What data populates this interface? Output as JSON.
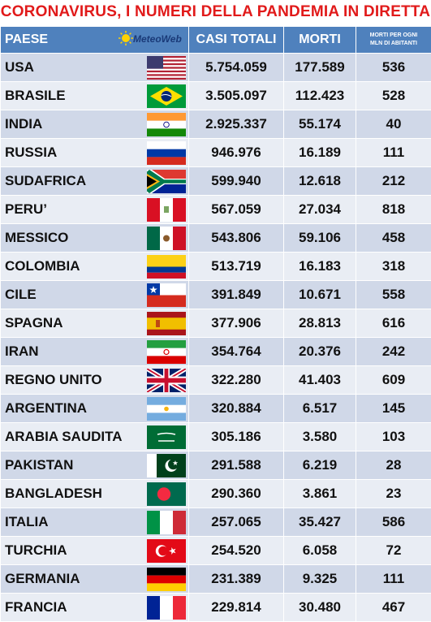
{
  "title": "CORONAVIRUS, I NUMERI DELLA PANDEMIA IN DIRETTA",
  "header": {
    "paese": "PAESE",
    "logo": "MeteoWeb",
    "casi": "CASI TOTALI",
    "morti": "MORTI",
    "mln_line1": "MORTI PER OGNI",
    "mln_line2": "MLN DI ABITANTI"
  },
  "rows": [
    {
      "paese": "USA",
      "casi": "5.754.059",
      "morti": "177.589",
      "mln": "536",
      "flag": "usa-flag"
    },
    {
      "paese": "BRASILE",
      "casi": "3.505.097",
      "morti": "112.423",
      "mln": "528",
      "flag": "brazil-flag"
    },
    {
      "paese": "INDIA",
      "casi": "2.925.337",
      "morti": "55.174",
      "mln": "40",
      "flag": "india-flag"
    },
    {
      "paese": "RUSSIA",
      "casi": "946.976",
      "morti": "16.189",
      "mln": "111",
      "flag": "russia-flag"
    },
    {
      "paese": "SUDAFRICA",
      "casi": "599.940",
      "morti": "12.618",
      "mln": "212",
      "flag": "south-africa-flag"
    },
    {
      "paese": "PERU’",
      "casi": "567.059",
      "morti": "27.034",
      "mln": "818",
      "flag": "peru-flag"
    },
    {
      "paese": "MESSICO",
      "casi": "543.806",
      "morti": "59.106",
      "mln": "458",
      "flag": "mexico-flag"
    },
    {
      "paese": "COLOMBIA",
      "casi": "513.719",
      "morti": "16.183",
      "mln": "318",
      "flag": "colombia-flag"
    },
    {
      "paese": "CILE",
      "casi": "391.849",
      "morti": "10.671",
      "mln": "558",
      "flag": "chile-flag"
    },
    {
      "paese": "SPAGNA",
      "casi": "377.906",
      "morti": "28.813",
      "mln": "616",
      "flag": "spain-flag"
    },
    {
      "paese": "IRAN",
      "casi": "354.764",
      "morti": "20.376",
      "mln": "242",
      "flag": "iran-flag"
    },
    {
      "paese": "REGNO UNITO",
      "casi": "322.280",
      "morti": "41.403",
      "mln": "609",
      "flag": "uk-flag"
    },
    {
      "paese": "ARGENTINA",
      "casi": "320.884",
      "morti": "6.517",
      "mln": "145",
      "flag": "argentina-flag"
    },
    {
      "paese": "ARABIA SAUDITA",
      "casi": "305.186",
      "morti": "3.580",
      "mln": "103",
      "flag": "saudi-arabia-flag"
    },
    {
      "paese": "PAKISTAN",
      "casi": "291.588",
      "morti": "6.219",
      "mln": "28",
      "flag": "pakistan-flag"
    },
    {
      "paese": "BANGLADESH",
      "casi": "290.360",
      "morti": "3.861",
      "mln": "23",
      "flag": "bangladesh-flag"
    },
    {
      "paese": "ITALIA",
      "casi": "257.065",
      "morti": "35.427",
      "mln": "586",
      "flag": "italy-flag"
    },
    {
      "paese": "TURCHIA",
      "casi": "254.520",
      "morti": "6.058",
      "mln": "72",
      "flag": "turkey-flag"
    },
    {
      "paese": "GERMANIA",
      "casi": "231.389",
      "morti": "9.325",
      "mln": "111",
      "flag": "germany-flag"
    },
    {
      "paese": "FRANCIA",
      "casi": "229.814",
      "morti": "30.480",
      "mln": "467",
      "flag": "france-flag"
    }
  ]
}
